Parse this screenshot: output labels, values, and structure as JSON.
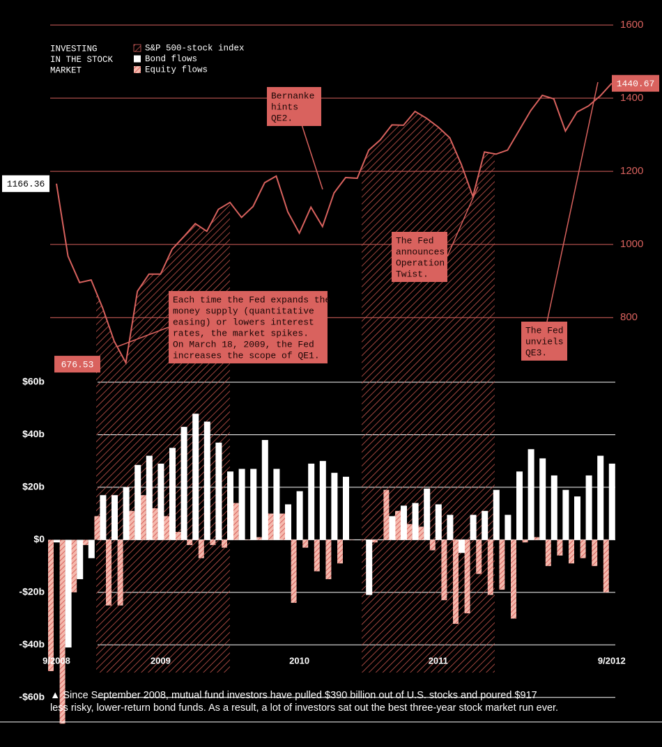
{
  "chart_data": {
    "type": "bar",
    "title": [
      "INVESTING",
      "IN THE STOCK",
      "MARKET"
    ],
    "categories": [
      "9/2008",
      null,
      null,
      null,
      null,
      null,
      null,
      null,
      null,
      "2009",
      null,
      null,
      null,
      null,
      null,
      null,
      null,
      null,
      null,
      null,
      null,
      "2010",
      null,
      null,
      null,
      null,
      null,
      null,
      null,
      null,
      null,
      null,
      null,
      "2011",
      null,
      null,
      null,
      null,
      null,
      null,
      null,
      null,
      null,
      null,
      null,
      null,
      null,
      null,
      "9/2012"
    ],
    "series": [
      {
        "name": "S&P 500-stock index",
        "type": "line",
        "axis": "y2",
        "color": "#d9625e",
        "values": [
          1166.36,
          968,
          896,
          903,
          826,
          735,
          676.53,
          872,
          919,
          919,
          987,
          1021,
          1057,
          1036,
          1096,
          1115,
          1074,
          1104,
          1169,
          1187,
          1089,
          1031,
          1102,
          1049,
          1141,
          1183,
          1181,
          1258,
          1286,
          1327,
          1326,
          1364,
          1345,
          1321,
          1292,
          1219,
          1131,
          1253,
          1247,
          1258,
          1312,
          1366,
          1408,
          1398,
          1310,
          1362,
          1379,
          1406,
          1440.67
        ]
      },
      {
        "name": "Bond flows",
        "color": "#ffffff",
        "values": [
          -1,
          -41,
          -15,
          -7,
          17,
          17,
          20,
          28.5,
          32,
          29,
          35,
          43,
          48,
          45,
          37,
          26,
          27,
          27,
          38,
          27,
          13.5,
          18.5,
          29,
          30,
          25.5,
          24,
          0,
          -21,
          0,
          9,
          13,
          14,
          19.5,
          13.5,
          9.5,
          -5,
          9.5,
          11,
          19,
          9.5,
          26,
          34.5,
          31,
          24.5,
          19,
          16.5,
          24.5,
          32,
          29
        ]
      },
      {
        "name": "Equity flows",
        "color": "#e8867c",
        "values": [
          -50,
          -70,
          -20,
          -2,
          9,
          -25,
          -25,
          11,
          17,
          12,
          9,
          3,
          -2,
          -7,
          -2,
          -3,
          14,
          0,
          1,
          10,
          10,
          -24,
          -3,
          -12,
          -15,
          -9,
          0,
          0,
          -1,
          19,
          11,
          6,
          5,
          -4,
          -23,
          -32,
          -28,
          -13,
          -21,
          -19,
          -30,
          -1,
          1,
          -10,
          -6,
          -9,
          -7,
          -10,
          -20
        ]
      }
    ],
    "ylim": [
      -72,
      60
    ],
    "yticks": [
      {
        "value": -60,
        "label": "-$60b"
      },
      {
        "value": -40,
        "label": "-$40b"
      },
      {
        "value": -20,
        "label": "-$20b"
      },
      {
        "value": 0,
        "label": "$0"
      },
      {
        "value": 20,
        "label": "$20b"
      },
      {
        "value": 40,
        "label": "$40b"
      },
      {
        "value": 60,
        "label": "$60b"
      }
    ],
    "y2lim": [
      650,
      1600
    ],
    "y2ticks": [
      800,
      1000,
      1200,
      1400,
      1600
    ],
    "grid": true,
    "legend": "top-left",
    "annotations": [
      [
        "Bernanke",
        "hints",
        "QE2."
      ],
      [
        "Each time the Fed expands the",
        "money supply (quantitative",
        "easing) or lowers interest",
        "rates, the market spikes.",
        "On March 18, 2009, the Fed",
        "increases the scope of QE1."
      ],
      [
        "The Fed",
        "announces",
        "Operation",
        "Twist."
      ],
      [
        "The Fed",
        "unviels",
        "QE3."
      ]
    ],
    "caption": [
      "▲ Since September 2008, mutual fund investors have pulled $390 billion out of U.S. stocks and poured $917",
      "less risky, lower-return bond funds. As a result, a lot of investors sat out the best three-year stock market run ever."
    ]
  }
}
